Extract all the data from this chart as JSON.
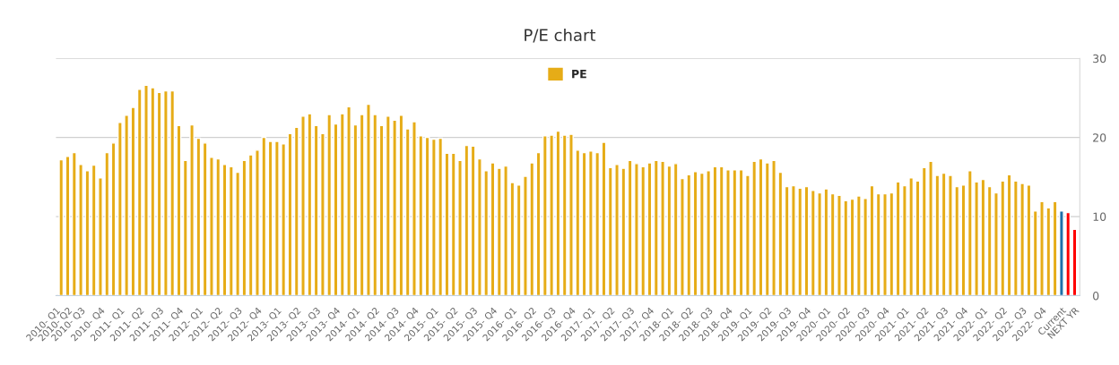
{
  "chart_data": {
    "type": "bar",
    "title": "P/E chart",
    "categories": [
      "2010- Q1",
      "2010- Q2",
      null,
      "2010- Q3",
      null,
      null,
      "2010- Q4",
      null,
      null,
      "2011- Q1",
      null,
      null,
      "2011- Q2",
      null,
      null,
      "2011- Q3",
      null,
      null,
      "2011- Q4",
      null,
      null,
      "2012- Q1",
      null,
      null,
      "2012- Q2",
      null,
      null,
      "2012- Q3",
      null,
      null,
      "2012- Q4",
      null,
      null,
      "2013- Q1",
      null,
      null,
      "2013- Q2",
      null,
      null,
      "2013- Q3",
      null,
      null,
      "2013- Q4",
      null,
      null,
      "2014- Q1",
      null,
      null,
      "2014- Q2",
      null,
      null,
      "2014- Q3",
      null,
      null,
      "2014- Q4",
      null,
      null,
      "2015- Q1",
      null,
      null,
      "2015- Q2",
      null,
      null,
      "2015- Q3",
      null,
      null,
      "2015- Q4",
      null,
      null,
      "2016- Q1",
      null,
      null,
      "2016- Q2",
      null,
      null,
      "2016- Q3",
      null,
      null,
      "2016- Q4",
      null,
      null,
      "2017- Q1",
      null,
      null,
      "2017- Q2",
      null,
      null,
      "2017- Q3",
      null,
      null,
      "2017- Q4",
      null,
      null,
      "2018- Q1",
      null,
      null,
      "2018- Q2",
      null,
      null,
      "2018- Q3",
      null,
      null,
      "2018- Q4",
      null,
      null,
      "2019- Q1",
      null,
      null,
      "2019- Q2",
      null,
      null,
      "2019- Q3",
      null,
      null,
      "2019- Q4",
      null,
      null,
      "2020- Q1",
      null,
      null,
      "2020- Q2",
      null,
      null,
      "2020- Q3",
      null,
      null,
      "2020- Q4",
      null,
      null,
      "2021- Q1",
      null,
      null,
      "2021- Q2",
      null,
      null,
      "2021- Q3",
      null,
      null,
      "2021- Q4",
      null,
      null,
      "2022- Q1",
      null,
      null,
      "2022- Q2",
      null,
      null,
      "2022- Q3",
      null,
      null,
      "2022- Q4",
      null,
      null,
      "Current",
      null,
      "NEXT YR"
    ],
    "series": [
      {
        "name": "PE",
        "color": "#e6ac17",
        "values": [
          17.2,
          17.6,
          18.1,
          16.6,
          15.8,
          16.5,
          14.9,
          18.1,
          19.3,
          21.9,
          22.8,
          23.8,
          26.1,
          26.6,
          26.3,
          25.7,
          25.9,
          25.9,
          21.5,
          17.1,
          21.6,
          19.9,
          19.3,
          17.5,
          17.3,
          16.6,
          16.3,
          15.6,
          17.1,
          17.8,
          18.4,
          20.0,
          19.5,
          19.5,
          19.2,
          20.5,
          21.3,
          22.7,
          23.0,
          21.5,
          20.5,
          22.9,
          21.7,
          23.0,
          23.9,
          21.6,
          22.9,
          24.2,
          22.9,
          21.5,
          22.7,
          22.2,
          22.8,
          21.1,
          22.0,
          20.2,
          20.0,
          19.8,
          19.9,
          18.0,
          18.0,
          17.1,
          19.0,
          18.9,
          17.3,
          15.8,
          16.8,
          16.1,
          16.4,
          14.3,
          14.0,
          15.1,
          16.8,
          18.1,
          20.2,
          20.3,
          20.8,
          20.3,
          20.4,
          18.4,
          18.1,
          18.3,
          18.1,
          19.4,
          16.2,
          16.6,
          16.1,
          17.1,
          16.7,
          16.3,
          16.8,
          17.1,
          17.0,
          16.4,
          16.7,
          14.8,
          15.3,
          15.7,
          15.5,
          15.8,
          16.3,
          16.3,
          15.9,
          15.9,
          15.9,
          15.2,
          17.0,
          17.3,
          16.8,
          17.1,
          15.6,
          13.8,
          13.9,
          13.6,
          13.8,
          13.3,
          13.0,
          13.5,
          12.9,
          12.7,
          12.0,
          12.2,
          12.6,
          12.3,
          13.9,
          12.9,
          12.9,
          13.0,
          14.4,
          13.9,
          14.9,
          14.5,
          16.2,
          17.0,
          15.2,
          15.5,
          15.2,
          13.8,
          14.0,
          15.8,
          14.4,
          14.7,
          13.8,
          13.0,
          14.5,
          15.3,
          14.5,
          14.2,
          14.0,
          10.7,
          11.9,
          11.1,
          11.9,
          null,
          null,
          null
        ]
      },
      {
        "color": "#1f6fa8",
        "values": [
          null,
          null,
          null,
          null,
          null,
          null,
          null,
          null,
          null,
          null,
          null,
          null,
          null,
          null,
          null,
          null,
          null,
          null,
          null,
          null,
          null,
          null,
          null,
          null,
          null,
          null,
          null,
          null,
          null,
          null,
          null,
          null,
          null,
          null,
          null,
          null,
          null,
          null,
          null,
          null,
          null,
          null,
          null,
          null,
          null,
          null,
          null,
          null,
          null,
          null,
          null,
          null,
          null,
          null,
          null,
          null,
          null,
          null,
          null,
          null,
          null,
          null,
          null,
          null,
          null,
          null,
          null,
          null,
          null,
          null,
          null,
          null,
          null,
          null,
          null,
          null,
          null,
          null,
          null,
          null,
          null,
          null,
          null,
          null,
          null,
          null,
          null,
          null,
          null,
          null,
          null,
          null,
          null,
          null,
          null,
          null,
          null,
          null,
          null,
          null,
          null,
          null,
          null,
          null,
          null,
          null,
          null,
          null,
          null,
          null,
          null,
          null,
          null,
          null,
          null,
          null,
          null,
          null,
          null,
          null,
          null,
          null,
          null,
          null,
          null,
          null,
          null,
          null,
          null,
          null,
          null,
          null,
          null,
          null,
          null,
          null,
          null,
          null,
          null,
          null,
          null,
          null,
          null,
          null,
          null,
          null,
          null,
          null,
          null,
          null,
          null,
          null,
          null,
          10.7,
          null,
          null
        ]
      },
      {
        "color": "#ff0000",
        "values": [
          null,
          null,
          null,
          null,
          null,
          null,
          null,
          null,
          null,
          null,
          null,
          null,
          null,
          null,
          null,
          null,
          null,
          null,
          null,
          null,
          null,
          null,
          null,
          null,
          null,
          null,
          null,
          null,
          null,
          null,
          null,
          null,
          null,
          null,
          null,
          null,
          null,
          null,
          null,
          null,
          null,
          null,
          null,
          null,
          null,
          null,
          null,
          null,
          null,
          null,
          null,
          null,
          null,
          null,
          null,
          null,
          null,
          null,
          null,
          null,
          null,
          null,
          null,
          null,
          null,
          null,
          null,
          null,
          null,
          null,
          null,
          null,
          null,
          null,
          null,
          null,
          null,
          null,
          null,
          null,
          null,
          null,
          null,
          null,
          null,
          null,
          null,
          null,
          null,
          null,
          null,
          null,
          null,
          null,
          null,
          null,
          null,
          null,
          null,
          null,
          null,
          null,
          null,
          null,
          null,
          null,
          null,
          null,
          null,
          null,
          null,
          null,
          null,
          null,
          null,
          null,
          null,
          null,
          null,
          null,
          null,
          null,
          null,
          null,
          null,
          null,
          null,
          null,
          null,
          null,
          null,
          null,
          null,
          null,
          null,
          null,
          null,
          null,
          null,
          null,
          null,
          null,
          null,
          null,
          null,
          null,
          null,
          null,
          null,
          null,
          null,
          null,
          null,
          null,
          10.5,
          8.4
        ]
      }
    ],
    "ylim": [
      0,
      30
    ],
    "yticks": [
      0,
      10,
      20,
      30
    ],
    "grid": "y",
    "legend": "top"
  }
}
